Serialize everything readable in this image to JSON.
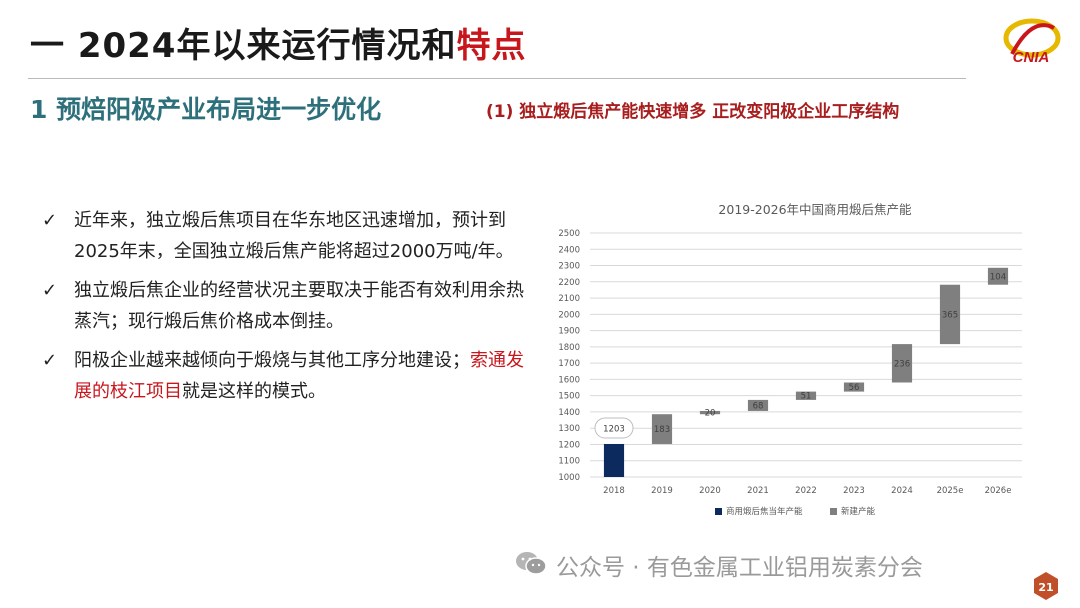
{
  "header": {
    "title_main": "一 2024年以来运行情况和",
    "title_highlight": "特点",
    "logo_text": "CNIA"
  },
  "section": {
    "title": "1 预焙阳极产业布局进一步优化",
    "subtitle": "(1) 独立煅后焦产能快速增多 正改变阳极企业工序结构"
  },
  "bullets": {
    "check_glyph": "✓",
    "b1": "近年来，独立煅后焦项目在华东地区迅速增加，预计到2025年末，全国独立煅后焦产能将超过2000万吨/年。",
    "b2": "独立煅后焦企业的经营状况主要取决于能否有效利用余热蒸汽；现行煅后焦价格成本倒挂。",
    "b3_pre": "阳极企业越来越倾向于煅烧与其他工序分地建设；",
    "b3_red": "索通发展的枝江项目",
    "b3_post": "就是这样的模式。"
  },
  "chart_data": {
    "type": "bar",
    "subtype": "waterfall",
    "title": "2019-2026年中国商用煅后焦产能",
    "categories": [
      "2018",
      "2019",
      "2020",
      "2021",
      "2022",
      "2023",
      "2024",
      "2025e",
      "2026e"
    ],
    "series": [
      {
        "name": "商用煅后焦当年产能",
        "values": [
          1203,
          null,
          null,
          null,
          null,
          null,
          null,
          null,
          null
        ],
        "color": "#0d2a5e"
      },
      {
        "name": "新建产能",
        "values": [
          null,
          183,
          20,
          68,
          51,
          56,
          236,
          365,
          104
        ],
        "color": "#7f7f7f"
      }
    ],
    "data_labels": [
      "1203",
      "183",
      "20",
      "68",
      "51",
      "56",
      "236",
      "365",
      "104"
    ],
    "ylim": [
      1000,
      2500
    ],
    "yticks": [
      1000,
      1100,
      1200,
      1300,
      1400,
      1500,
      1600,
      1700,
      1800,
      1900,
      2000,
      2100,
      2200,
      2300,
      2400,
      2500
    ],
    "grid": true,
    "legend_position": "bottom"
  },
  "footer": {
    "watermark": "公众号 · 有色金属工业铝用炭素分会",
    "page_number": "21"
  }
}
